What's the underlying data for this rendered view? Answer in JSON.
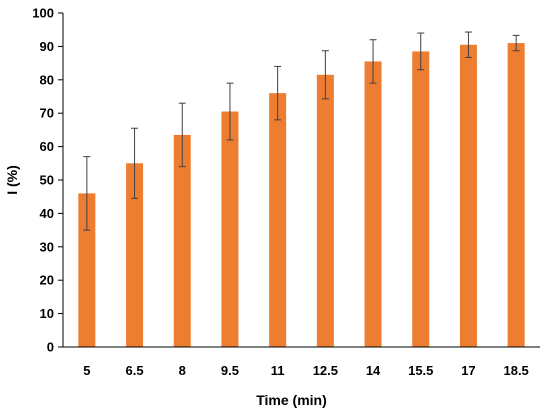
{
  "chart_data": {
    "type": "bar",
    "title": "",
    "xlabel": "Time (min)",
    "ylabel": "I (%)",
    "categories": [
      "5",
      "6.5",
      "8",
      "9.5",
      "11",
      "12.5",
      "14",
      "15.5",
      "17",
      "18.5"
    ],
    "values": [
      46,
      55,
      63.5,
      70.5,
      76,
      81.5,
      85.5,
      88.5,
      90.5,
      91
    ],
    "errors": [
      11,
      10.5,
      9.5,
      8.5,
      8,
      7.2,
      6.5,
      5.5,
      3.8,
      2.3
    ],
    "ylim": [
      0,
      100
    ],
    "yticks": [
      0,
      10,
      20,
      30,
      40,
      50,
      60,
      70,
      80,
      90,
      100
    ],
    "grid": false,
    "legend": "none",
    "bar_color": "#ED7D31",
    "error_bar_color": "#404040",
    "axis_color": "#000000"
  }
}
